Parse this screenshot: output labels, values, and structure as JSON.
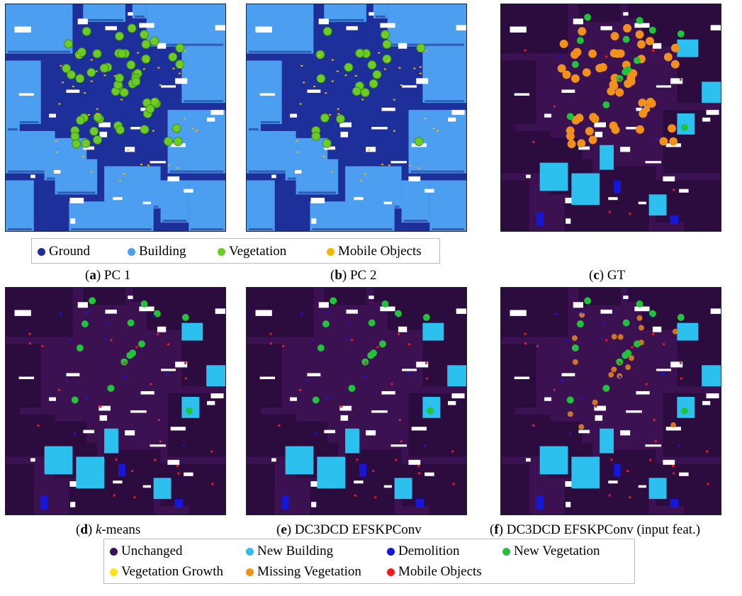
{
  "panels": [
    {
      "key": "a",
      "caption_letter": "a",
      "caption_text": " PC 1",
      "base": "#1d2f9a",
      "style": "classes"
    },
    {
      "key": "b",
      "caption_letter": "b",
      "caption_text": " PC 2",
      "base": "#1d2f9a",
      "style": "classes2"
    },
    {
      "key": "c",
      "caption_letter": "c",
      "caption_text": " GT",
      "base": "#3a1449",
      "style": "changes_gt"
    },
    {
      "key": "d",
      "caption_letter": "d",
      "caption_text_italic": "k",
      "caption_text": "-means",
      "base": "#3a1449",
      "style": "changes"
    },
    {
      "key": "e",
      "caption_letter": "e",
      "caption_text": " DC3DCD EFSKPConv",
      "base": "#3a1449",
      "style": "changes"
    },
    {
      "key": "f",
      "caption_letter": "f",
      "caption_text": " DC3DCD EFSKPConv (input feat.)",
      "base": "#3a1449",
      "style": "changes_f"
    }
  ],
  "legend_top": {
    "items": [
      {
        "label": "Ground",
        "color": "#1a2e9c",
        "icon": "dot"
      },
      {
        "label": "Building",
        "color": "#4c9ef0",
        "icon": "dot"
      },
      {
        "label": "Vegetation",
        "color": "#6ccc27",
        "icon": "dot"
      },
      {
        "label": "Mobile Objects",
        "color": "#f2b705",
        "icon": "dot"
      }
    ]
  },
  "legend_bottom": {
    "items": [
      {
        "label": "Unchanged",
        "color": "#3b1152",
        "icon": "dot"
      },
      {
        "label": "New Building",
        "color": "#2cc0ee",
        "icon": "dot"
      },
      {
        "label": "Demolition",
        "color": "#1616d8",
        "icon": "dot"
      },
      {
        "label": "New Vegetation",
        "color": "#22c23a",
        "icon": "dot"
      },
      {
        "label": "Vegetation Growth",
        "color": "#f7e21b",
        "icon": "dot"
      },
      {
        "label": "Missing Vegetation",
        "color": "#f2901c",
        "icon": "dot"
      },
      {
        "label": "Mobile Objects",
        "color": "#ee1c1c",
        "icon": "dot"
      }
    ]
  }
}
